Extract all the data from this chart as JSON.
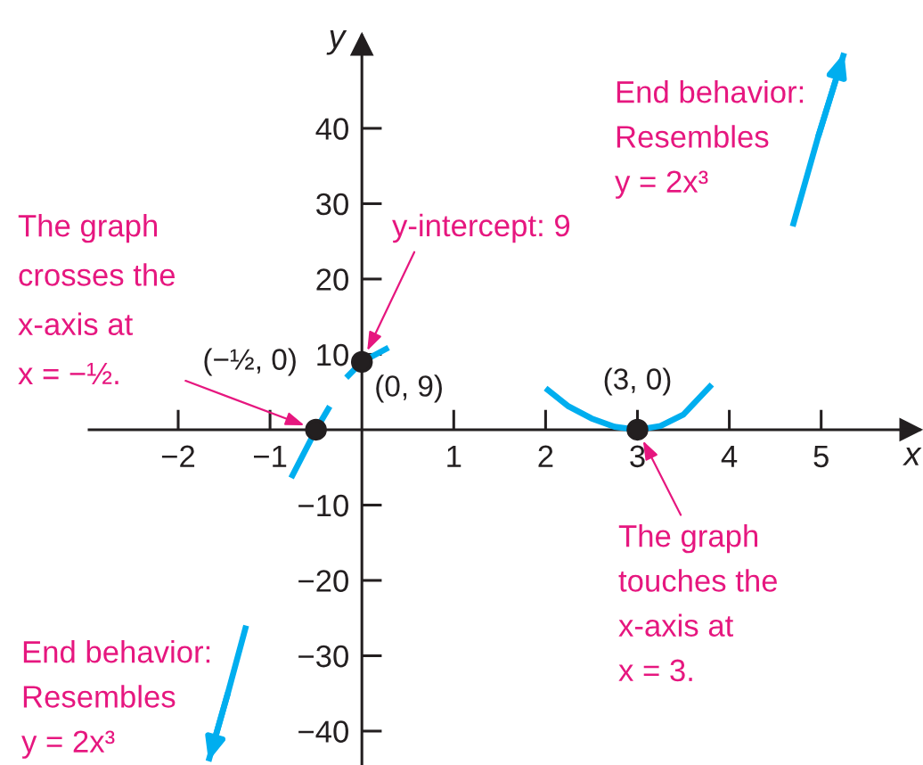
{
  "chart_data": {
    "type": "line",
    "xlabel": "x",
    "ylabel": "y",
    "xlim": [
      -2.97,
      6.07
    ],
    "ylim": [
      -44.5,
      52.3
    ],
    "xticks": [
      {
        "value": -2,
        "label": "−2"
      },
      {
        "value": -1,
        "label": "−1"
      },
      1,
      2,
      3,
      4,
      5
    ],
    "yticks": [
      {
        "value": -40,
        "label": "−40"
      },
      {
        "value": -30,
        "label": "−30"
      },
      {
        "value": -20,
        "label": "−20"
      },
      {
        "value": -10,
        "label": "−10"
      },
      10,
      20,
      30,
      40
    ],
    "series": [
      {
        "color": "#00aeef",
        "x": [
          -1.67,
          -1.46,
          -1.26,
          -1.0,
          -0.77,
          -0.5,
          -0.35,
          -0.26,
          -0.17,
          0,
          0.29,
          1.0,
          2.0,
          2.25,
          2.5,
          2.75,
          3.0,
          3.25,
          3.5,
          3.81,
          4.2,
          4.69,
          4.97,
          5.25
        ],
        "values": [
          -44,
          -35,
          -26,
          null,
          -6.4,
          0,
          3.1,
          null,
          6.9,
          9,
          10.9,
          null,
          5.5,
          3.1,
          1.5,
          0.4,
          0,
          0.5,
          2.0,
          6.0,
          null,
          27,
          39,
          50
        ]
      },
      {
        "type": "scatter",
        "color": "#231f20",
        "marker": "circle",
        "x": [
          -0.5,
          0,
          3
        ],
        "values": [
          0,
          9,
          0
        ],
        "value_labels": [
          "(−½, 0)",
          "(0, 9)",
          "(3, 0)"
        ]
      }
    ],
    "annotations": [
      {
        "text": "The graph\ncrosses the\nx-axis at\nx = −½.",
        "x": -0.5,
        "y": 0
      },
      {
        "text": "y-intercept: 9",
        "x": 0,
        "y": 9
      },
      {
        "text": "The graph\ntouches the\nx-axis at\nx = 3.",
        "x": 3,
        "y": 0
      },
      "End behavior:\nResembles\ny = 2x³",
      "End behavior:\nResembles\ny = 2x³"
    ]
  }
}
